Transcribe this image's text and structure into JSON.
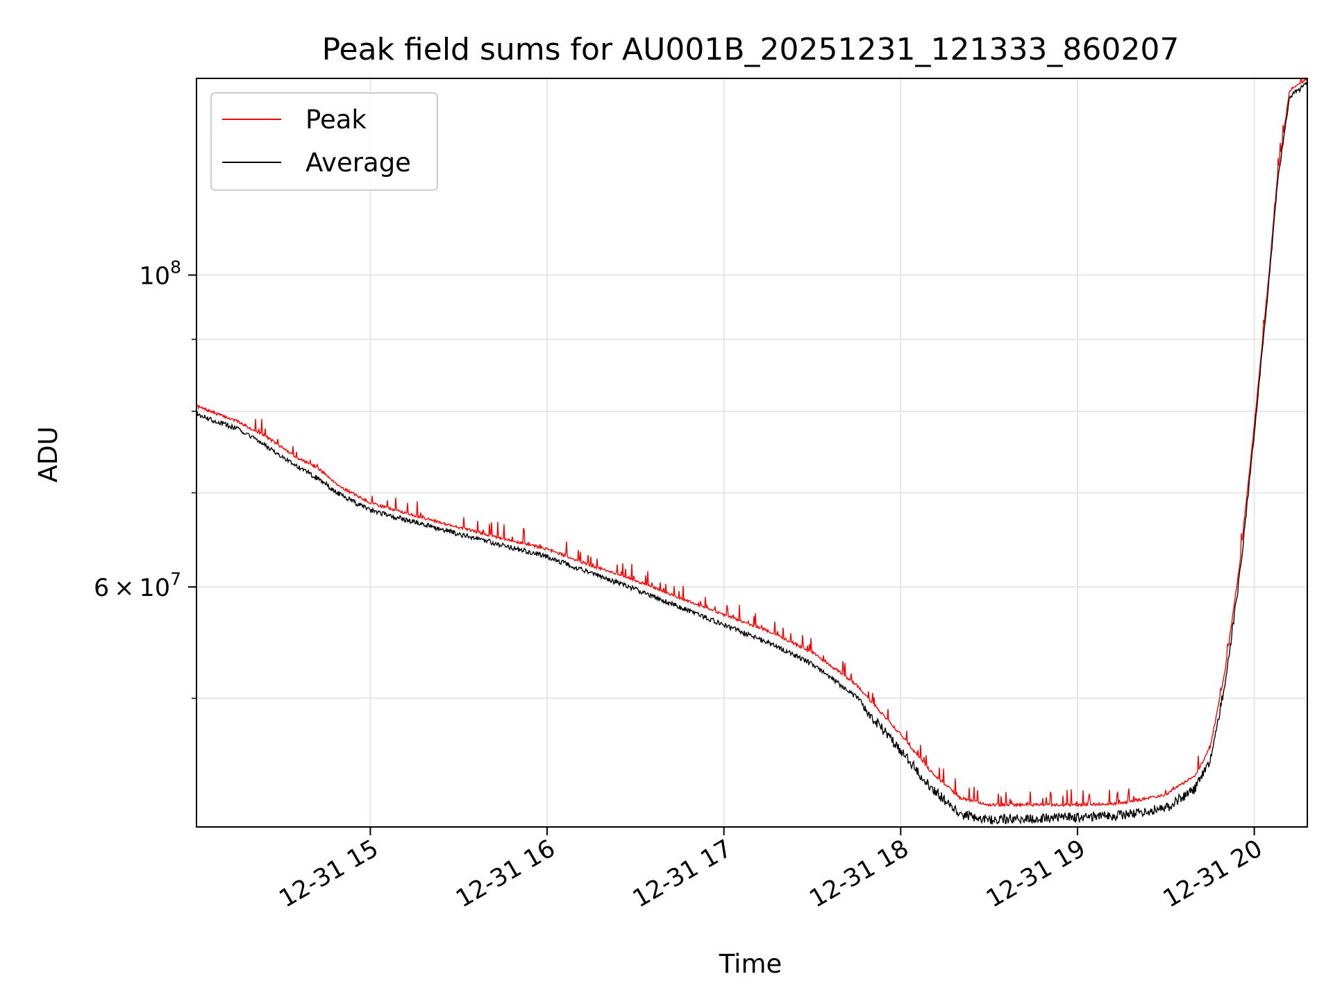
{
  "chart_data": {
    "type": "line",
    "title": "Peak field sums for AU001B_20251231_121333_860207",
    "xlabel": "Time",
    "ylabel": "ADU",
    "x_unit": "datetime",
    "xlim": [
      "2025-12-31T14:01:00",
      "2025-12-31T20:18:00"
    ],
    "ylim": [
      40500000,
      138000000
    ],
    "yscale": "log",
    "grid": true,
    "legend_position": "top-left",
    "x_ticks": [
      {
        "value": "2025-12-31T15:00:00",
        "label": "12-31 15"
      },
      {
        "value": "2025-12-31T16:00:00",
        "label": "12-31 16"
      },
      {
        "value": "2025-12-31T17:00:00",
        "label": "12-31 17"
      },
      {
        "value": "2025-12-31T18:00:00",
        "label": "12-31 18"
      },
      {
        "value": "2025-12-31T19:00:00",
        "label": "12-31 19"
      },
      {
        "value": "2025-12-31T20:00:00",
        "label": "12-31 20"
      }
    ],
    "y_major_ticks": [
      {
        "value": 60000000,
        "mantissa": "6",
        "times": "×",
        "base": "10",
        "exponent": "7"
      },
      {
        "value": 100000000,
        "mantissa": "",
        "times": "",
        "base": "10",
        "exponent": "8"
      }
    ],
    "y_minor_ticks": [
      50000000,
      70000000,
      80000000,
      90000000
    ],
    "series": [
      {
        "name": "Peak",
        "color": "#ff0000",
        "x": [
          "2025-12-31T14:01:00",
          "2025-12-31T14:15:00",
          "2025-12-31T14:25:00",
          "2025-12-31T14:35:00",
          "2025-12-31T14:42:00",
          "2025-12-31T14:50:00",
          "2025-12-31T15:00:00",
          "2025-12-31T15:15:00",
          "2025-12-31T15:30:00",
          "2025-12-31T15:45:00",
          "2025-12-31T16:00:00",
          "2025-12-31T16:15:00",
          "2025-12-31T16:30:00",
          "2025-12-31T16:45:00",
          "2025-12-31T17:00:00",
          "2025-12-31T17:15:00",
          "2025-12-31T17:30:00",
          "2025-12-31T17:45:00",
          "2025-12-31T18:00:00",
          "2025-12-31T18:10:00",
          "2025-12-31T18:20:00",
          "2025-12-31T18:30:00",
          "2025-12-31T18:40:00",
          "2025-12-31T19:00:00",
          "2025-12-31T19:15:00",
          "2025-12-31T19:30:00",
          "2025-12-31T19:40:00",
          "2025-12-31T19:45:00",
          "2025-12-31T19:50:00",
          "2025-12-31T19:55:00",
          "2025-12-31T20:00:00",
          "2025-12-31T20:05:00",
          "2025-12-31T20:08:00",
          "2025-12-31T20:12:00",
          "2025-12-31T20:18:00"
        ],
        "values": [
          80500000,
          78500000,
          76500000,
          74000000,
          72800000,
          70500000,
          68700000,
          67300000,
          66000000,
          64800000,
          63700000,
          62000000,
          60500000,
          58800000,
          57200000,
          55700000,
          53800000,
          51000000,
          47000000,
          44300000,
          42400000,
          41900000,
          41900000,
          41900000,
          42000000,
          42600000,
          44000000,
          46000000,
          52000000,
          62000000,
          78000000,
          100000000,
          118000000,
          135000000,
          137500000
        ]
      },
      {
        "name": "Average",
        "color": "#000000",
        "x": [
          "2025-12-31T14:01:00",
          "2025-12-31T14:15:00",
          "2025-12-31T14:25:00",
          "2025-12-31T14:35:00",
          "2025-12-31T14:42:00",
          "2025-12-31T14:50:00",
          "2025-12-31T15:00:00",
          "2025-12-31T15:15:00",
          "2025-12-31T15:30:00",
          "2025-12-31T15:45:00",
          "2025-12-31T16:00:00",
          "2025-12-31T16:15:00",
          "2025-12-31T16:30:00",
          "2025-12-31T16:45:00",
          "2025-12-31T17:00:00",
          "2025-12-31T17:15:00",
          "2025-12-31T17:30:00",
          "2025-12-31T17:45:00",
          "2025-12-31T18:00:00",
          "2025-12-31T18:10:00",
          "2025-12-31T18:20:00",
          "2025-12-31T18:30:00",
          "2025-12-31T18:40:00",
          "2025-12-31T19:00:00",
          "2025-12-31T19:15:00",
          "2025-12-31T19:30:00",
          "2025-12-31T19:40:00",
          "2025-12-31T19:45:00",
          "2025-12-31T19:50:00",
          "2025-12-31T19:55:00",
          "2025-12-31T20:00:00",
          "2025-12-31T20:05:00",
          "2025-12-31T20:08:00",
          "2025-12-31T20:12:00",
          "2025-12-31T20:18:00"
        ],
        "values": [
          80000000,
          78000000,
          75800000,
          73500000,
          72000000,
          70000000,
          68300000,
          67000000,
          65700000,
          64500000,
          63300000,
          61600000,
          60000000,
          58300000,
          56600000,
          55000000,
          53100000,
          50300000,
          46300000,
          43600000,
          41700000,
          41300000,
          41400000,
          41500000,
          41600000,
          42100000,
          43500000,
          45500000,
          51500000,
          61500000,
          77500000,
          99500000,
          117500000,
          134500000,
          137300000
        ]
      }
    ]
  }
}
